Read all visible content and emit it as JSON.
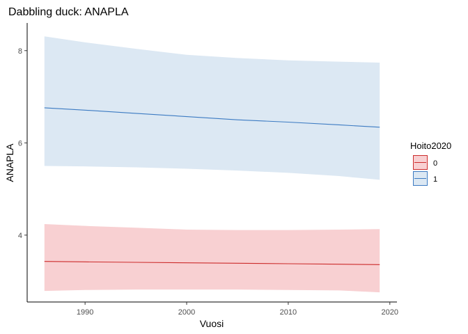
{
  "chart_data": {
    "type": "line",
    "title": "Dabbling duck: ANAPLA",
    "xlabel": "Vuosi",
    "ylabel": "ANAPLA",
    "xlim": [
      1984.3,
      2020.7
    ],
    "ylim": [
      2.55,
      8.6
    ],
    "xticks": [
      1990,
      2000,
      2010,
      2020
    ],
    "xtick_labels": [
      "1990",
      "2000",
      "2010",
      "2020"
    ],
    "yticks": [
      4,
      6,
      8
    ],
    "ytick_labels": [
      "4",
      "6",
      "8"
    ],
    "grid": false,
    "legend": {
      "title": "Hoito2020",
      "placement": "right"
    },
    "series": [
      {
        "name": "0",
        "color": "#CC2B2B",
        "fill": "#F8D0D2",
        "x": [
          1986,
          1990,
          1995,
          2000,
          2005,
          2010,
          2015,
          2019
        ],
        "y": [
          3.43,
          3.42,
          3.41,
          3.4,
          3.39,
          3.38,
          3.37,
          3.36
        ],
        "lower": [
          2.79,
          2.81,
          2.82,
          2.82,
          2.82,
          2.81,
          2.8,
          2.76
        ],
        "upper": [
          4.24,
          4.2,
          4.16,
          4.12,
          4.11,
          4.11,
          4.12,
          4.13
        ]
      },
      {
        "name": "1",
        "color": "#3B7AC2",
        "fill": "#DCE8F3",
        "x": [
          1986,
          1990,
          1995,
          2000,
          2005,
          2010,
          2015,
          2019
        ],
        "y": [
          6.76,
          6.71,
          6.64,
          6.57,
          6.5,
          6.45,
          6.39,
          6.34
        ],
        "lower": [
          5.5,
          5.49,
          5.47,
          5.44,
          5.4,
          5.35,
          5.28,
          5.2
        ],
        "upper": [
          8.31,
          8.18,
          8.04,
          7.91,
          7.84,
          7.79,
          7.76,
          7.74
        ]
      }
    ]
  }
}
